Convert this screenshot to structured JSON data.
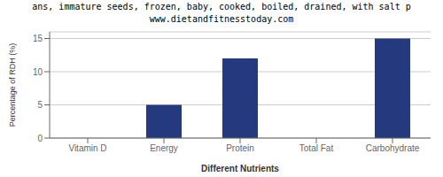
{
  "chart_data": {
    "type": "bar",
    "title": "ans, immature seeds, frozen, baby, cooked, boiled, drained, with salt p",
    "subtitle": "www.dietandfitnesstoday.com",
    "categories": [
      "Vitamin D",
      "Energy",
      "Protein",
      "Total Fat",
      "Carbohydrate"
    ],
    "values": [
      0,
      5,
      12,
      0,
      15
    ],
    "color": "#253a7e",
    "xlabel": "Different Nutrients",
    "ylabel": "Percentage of RDH (%)",
    "ylim": [
      0,
      16
    ],
    "yticks": [
      0,
      5,
      10,
      15
    ],
    "grid": true
  }
}
